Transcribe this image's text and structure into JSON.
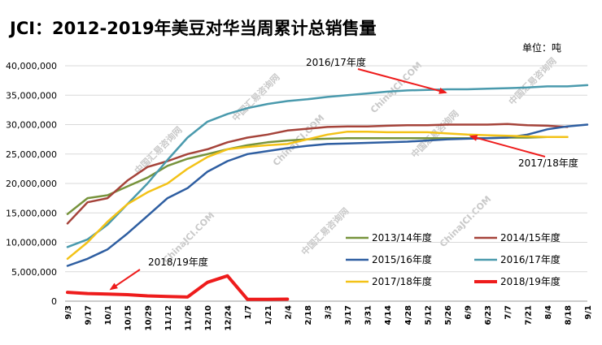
{
  "chart_data": {
    "type": "line",
    "title": "JCI：2012-2019年美豆对华当周累计总销售量",
    "unit_label": "单位：吨",
    "ylim": [
      0,
      40000000
    ],
    "y_ticks": [
      "0",
      "5,000,000",
      "10,000,000",
      "15,000,000",
      "20,000,000",
      "25,000,000",
      "30,000,000",
      "35,000,000",
      "40,000,000"
    ],
    "y_tick_values": [
      0,
      5000000,
      10000000,
      15000000,
      20000000,
      25000000,
      30000000,
      35000000,
      40000000
    ],
    "categories": [
      "9/3",
      "9/17",
      "10/1",
      "10/15",
      "10/29",
      "11/12",
      "11/26",
      "12/10",
      "12/24",
      "1/7",
      "1/21",
      "2/4",
      "2/18",
      "3/3",
      "3/17",
      "3/31",
      "4/14",
      "4/28",
      "5/12",
      "5/26",
      "6/9",
      "6/23",
      "7/7",
      "7/21",
      "8/4",
      "8/18",
      "9/1"
    ],
    "grid": true,
    "series": [
      {
        "name": "2013/14年度",
        "color": "#77933c",
        "width": 2.5,
        "values": [
          14800000,
          17500000,
          18000000,
          19500000,
          21000000,
          23000000,
          24200000,
          25000000,
          25800000,
          26500000,
          27000000,
          27300000,
          27500000,
          27600000,
          27700000,
          27700000,
          27700000,
          27700000,
          27700000,
          27700000,
          27700000,
          27700000,
          27800000,
          27800000,
          27900000,
          27900000,
          null
        ]
      },
      {
        "name": "2014/15年度",
        "color": "#a5433a",
        "width": 2.5,
        "values": [
          13200000,
          16800000,
          17500000,
          20500000,
          22800000,
          23800000,
          25000000,
          25800000,
          27000000,
          27800000,
          28300000,
          29000000,
          29300000,
          29600000,
          29700000,
          29700000,
          29800000,
          29900000,
          29900000,
          30000000,
          30000000,
          30000000,
          30100000,
          29900000,
          29800000,
          29600000,
          null
        ]
      },
      {
        "name": "2015/16年度",
        "color": "#2e5ea1",
        "width": 2.5,
        "values": [
          6000000,
          7200000,
          8800000,
          11500000,
          14500000,
          17500000,
          19200000,
          22000000,
          23800000,
          25000000,
          25500000,
          26000000,
          26400000,
          26700000,
          26800000,
          26900000,
          27000000,
          27100000,
          27300000,
          27500000,
          27600000,
          27700000,
          27800000,
          28300000,
          29200000,
          29700000,
          30000000
        ]
      },
      {
        "name": "2016/17年度",
        "color": "#4a9aad",
        "width": 2.5,
        "values": [
          9200000,
          10500000,
          13000000,
          16500000,
          20000000,
          24000000,
          27800000,
          30500000,
          31800000,
          32800000,
          33500000,
          34000000,
          34300000,
          34700000,
          35000000,
          35300000,
          35600000,
          35800000,
          35900000,
          36000000,
          36000000,
          36100000,
          36200000,
          36300000,
          36500000,
          36500000,
          36700000
        ]
      },
      {
        "name": "2017/18年度",
        "color": "#f3c217",
        "width": 2.5,
        "values": [
          7200000,
          10000000,
          13500000,
          16500000,
          18500000,
          20000000,
          22500000,
          24500000,
          25800000,
          26200000,
          26500000,
          26700000,
          27500000,
          28300000,
          28800000,
          28800000,
          28700000,
          28700000,
          28700000,
          28500000,
          28300000,
          28200000,
          28100000,
          28000000,
          27900000,
          27900000,
          null
        ]
      },
      {
        "name": "2018/19年度",
        "color": "#ee1c1c",
        "width": 4,
        "values": [
          1500000,
          1300000,
          1200000,
          1100000,
          900000,
          800000,
          700000,
          3200000,
          4300000,
          300000,
          300000,
          350000,
          null,
          null,
          null,
          null,
          null,
          null,
          null,
          null,
          null,
          null,
          null,
          null,
          null,
          null,
          null
        ]
      }
    ],
    "annotations": [
      {
        "text": "2016/17年度",
        "series": "2016/17年度"
      },
      {
        "text": "2017/18年度",
        "series": "2017/18年度"
      },
      {
        "text": "2018/19年度",
        "series": "2018/19年度"
      }
    ],
    "legend_placement": "bottom-right, inside plot (3 rows × 2 columns)",
    "watermark": [
      "中国汇易咨询网",
      "ChinaJCI.COM"
    ]
  }
}
